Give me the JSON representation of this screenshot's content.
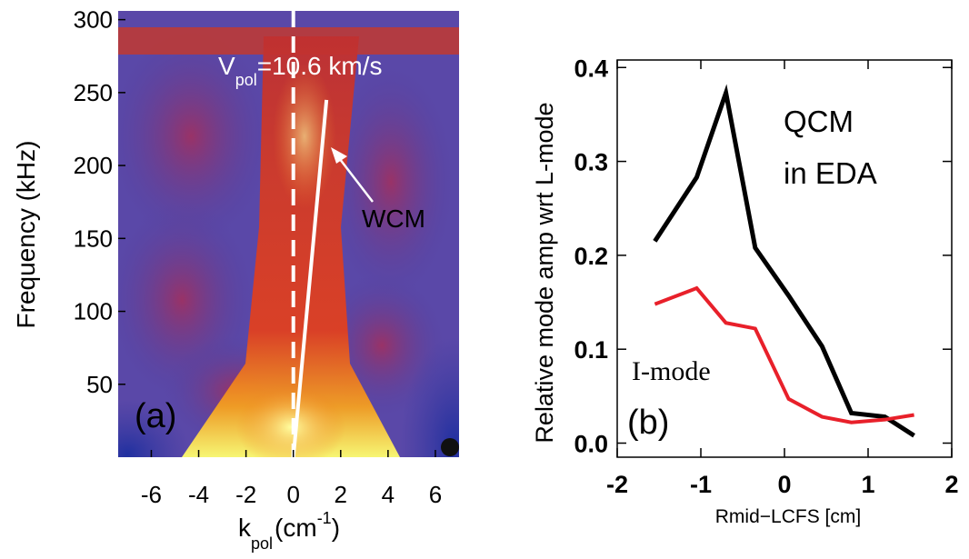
{
  "chart_data": [
    {
      "type": "spectrogram",
      "ylabel": "Frequency (kHz)",
      "xlabel": {
        "text": "k",
        "subscript": "pol",
        "unit": "(cm",
        "superscript": "-1",
        "close": ")"
      },
      "xlim": [
        -7.4,
        7.0
      ],
      "xticks": [
        -6,
        -4,
        -2,
        0,
        2,
        4,
        6
      ],
      "ylim": [
        0,
        306
      ],
      "yticks": [
        50,
        100,
        150,
        200,
        250,
        300
      ],
      "panel_label": "(a)",
      "wcm_label": "WCM",
      "velocity_label": {
        "symbol": "V",
        "subscript": "pol",
        "text": "=10.6 km/s"
      },
      "dashed_x": 0,
      "fit_line": {
        "x": [
          0,
          1.4
        ],
        "y": [
          0,
          245
        ]
      }
    },
    {
      "type": "line",
      "ylabel": "Relative mode amp wrt L-mode",
      "xlabel": "Rmid−LCFS [cm]",
      "xlim": [
        -2,
        2
      ],
      "xticks": [
        -2,
        -1,
        0,
        1,
        2
      ],
      "ylim": [
        -0.015,
        0.408
      ],
      "yticks": [
        {
          "value": 0,
          "label": "0.0"
        },
        0.1,
        0.2,
        0.3,
        0.4
      ],
      "panel_label": "(b)",
      "x": [
        -1.55,
        -1.05,
        -0.7,
        -0.35,
        0.05,
        0.45,
        0.8,
        1.2,
        1.55
      ],
      "series": [
        {
          "labels": [
            "QCM",
            "in EDA"
          ],
          "color": "#000000",
          "values": [
            0.215,
            0.283,
            0.373,
            0.208,
            0.157,
            0.103,
            0.032,
            0.028,
            0.008
          ]
        },
        {
          "labels": [
            "I-mode"
          ],
          "color": "#e8202a",
          "values": [
            0.148,
            0.165,
            0.128,
            0.122,
            0.047,
            0.028,
            0.022,
            0.025,
            0.03
          ]
        }
      ]
    }
  ]
}
